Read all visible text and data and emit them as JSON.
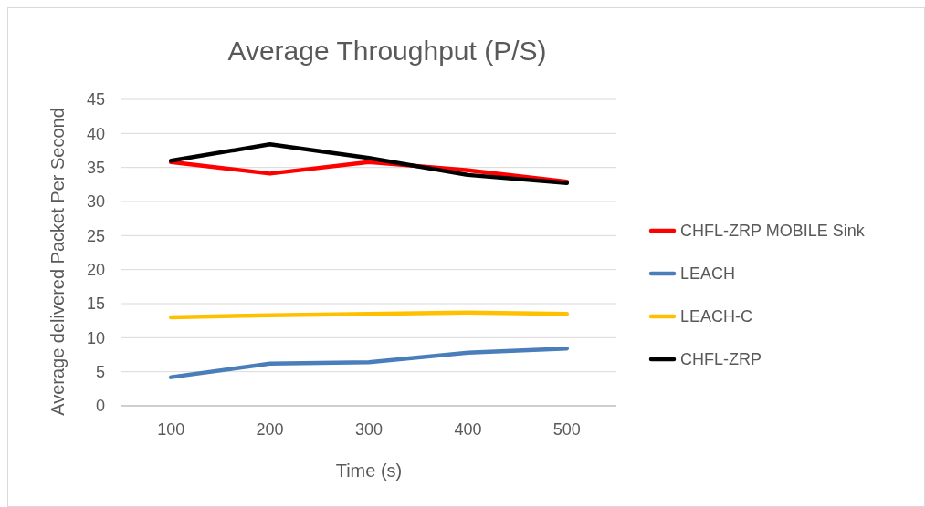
{
  "chart_data": {
    "type": "line",
    "title": "Average Throughput (P/S)",
    "xlabel": "Time (s)",
    "ylabel": "Average delivered Packet Per Second",
    "categories": [
      "100",
      "200",
      "300",
      "400",
      "500"
    ],
    "series": [
      {
        "name": "CHFL-ZRP MOBILE Sink",
        "color": "#ff0000",
        "values": [
          35.8,
          34.1,
          35.8,
          34.6,
          32.9
        ]
      },
      {
        "name": "LEACH",
        "color": "#4a7ebb",
        "values": [
          4.2,
          6.2,
          6.4,
          7.8,
          8.4
        ]
      },
      {
        "name": "LEACH-C",
        "color": "#ffc000",
        "values": [
          13.0,
          13.3,
          13.5,
          13.7,
          13.5
        ]
      },
      {
        "name": "CHFL-ZRP",
        "color": "#000000",
        "values": [
          36.0,
          38.4,
          36.4,
          33.9,
          32.7
        ]
      }
    ],
    "ylim": [
      0,
      45
    ],
    "yticks": [
      0,
      5,
      10,
      15,
      20,
      25,
      30,
      35,
      40,
      45
    ],
    "grid": "y",
    "legend": "right",
    "marker": "none",
    "line_style": "solid"
  }
}
